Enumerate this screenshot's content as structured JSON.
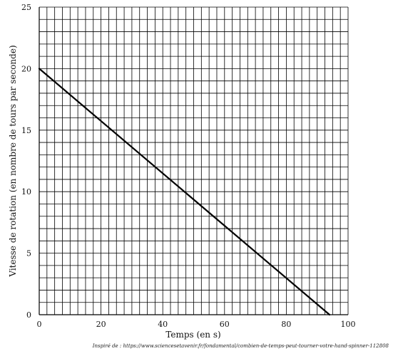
{
  "chart_data": {
    "type": "line",
    "title": "",
    "xlabel": "Temps (en s)",
    "ylabel": "Vitesse de rotation (en nombre de tours par seconde)",
    "xlim": [
      0,
      100
    ],
    "ylim": [
      0,
      25
    ],
    "x_ticks": [
      0,
      20,
      40,
      60,
      80,
      100
    ],
    "y_ticks": [
      0,
      5,
      10,
      15,
      20,
      25
    ],
    "x_minor_step": 2.5,
    "y_minor_step": 1,
    "grid": true,
    "line_color": "#000000",
    "series": [
      {
        "x": [
          0,
          94
        ],
        "y": [
          20,
          0
        ]
      }
    ]
  },
  "source_note": "Inspiré de : https://www.sciencesetavenir.fr/fondamental/combien-de-temps-peut-tourner-votre-hand-spinner-112808"
}
